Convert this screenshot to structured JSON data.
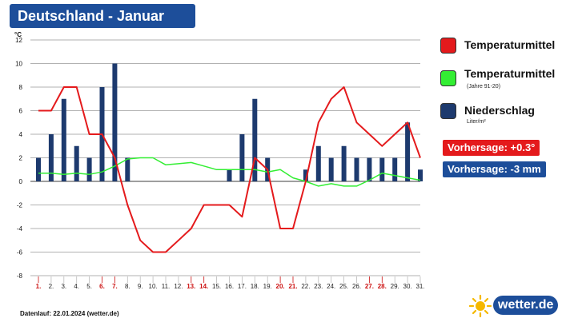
{
  "header": {
    "title": "Deutschland - Januar"
  },
  "legend": {
    "temp": {
      "label": "Temperaturmittel",
      "color": "#e41a1c"
    },
    "temp_norm": {
      "label": "Temperaturmittel",
      "sub": "(Jahre 91-20)",
      "color": "#33ee33"
    },
    "precip": {
      "label": "Niederschlag",
      "sub": "Liter/m²",
      "color": "#1d3a6e"
    }
  },
  "forecast": {
    "temp": {
      "text": "Vorhersage: +0.3°",
      "color": "#e41a1c"
    },
    "precip": {
      "text": "Vorhersage: -3 mm",
      "color": "#1d4e9a"
    }
  },
  "footer": {
    "note": "Datenlauf: 22.01.2024 (wetter.de)"
  },
  "logo": {
    "text": "wetter.de",
    "icon": "sun-icon",
    "color": "#f5b800"
  },
  "chart_data": {
    "type": "bar",
    "ylabel": "°C",
    "ylim": [
      -8,
      12
    ],
    "yticks": [
      -8,
      -6,
      -4,
      -2,
      0,
      2,
      4,
      6,
      8,
      10,
      12
    ],
    "grid": true,
    "categories": [
      "1.",
      "2.",
      "3.",
      "4.",
      "5.",
      "6.",
      "7.",
      "8.",
      "9.",
      "10.",
      "11.",
      "12.",
      "13.",
      "14.",
      "15.",
      "16.",
      "17.",
      "18.",
      "19.",
      "20.",
      "21.",
      "22.",
      "23.",
      "24.",
      "25.",
      "26.",
      "27.",
      "28.",
      "29.",
      "30.",
      "31."
    ],
    "weekend_days": [
      "1.",
      "6.",
      "7.",
      "13.",
      "14.",
      "20.",
      "21.",
      "27.",
      "28."
    ],
    "weekend_color": "#cc1111",
    "series": [
      {
        "name": "Niederschlag",
        "kind": "bar",
        "color": "#1d3a6e",
        "values": [
          2,
          4,
          7,
          3,
          2,
          8,
          10,
          2,
          null,
          null,
          null,
          null,
          null,
          null,
          null,
          1,
          4,
          7,
          2,
          null,
          null,
          1,
          3,
          2,
          3,
          2,
          2,
          2,
          2,
          5,
          1
        ]
      },
      {
        "name": "Temperaturmittel",
        "kind": "line",
        "color": "#e41a1c",
        "values": [
          6,
          6,
          8,
          8,
          4,
          4,
          2,
          -2,
          -5,
          -6,
          -6,
          -5,
          -4,
          -2,
          -2,
          -2,
          -3,
          2,
          1,
          -4,
          -4,
          0,
          5,
          7,
          8,
          5,
          4,
          3,
          4,
          5,
          2
        ]
      },
      {
        "name": "Temperaturmittel (Jahre 91-20)",
        "kind": "line",
        "color": "#33ee33",
        "values": [
          0.7,
          0.7,
          0.6,
          0.7,
          0.6,
          0.8,
          1.3,
          1.9,
          2.0,
          2.0,
          1.4,
          1.5,
          1.6,
          1.3,
          1.0,
          1.0,
          1.0,
          1.0,
          0.8,
          1.0,
          0.3,
          0.0,
          -0.4,
          -0.2,
          -0.4,
          -0.4,
          0.1,
          0.7,
          0.5,
          0.3,
          0.1
        ]
      }
    ]
  }
}
